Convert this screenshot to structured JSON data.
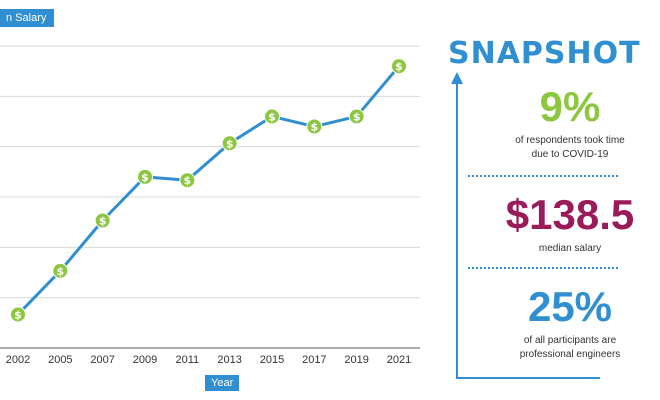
{
  "chart_data": {
    "type": "line",
    "title": "",
    "ylabel_partial": "n Salary",
    "xlabel": "Year",
    "categories": [
      "2002",
      "2005",
      "2007",
      "2009",
      "2011",
      "2013",
      "2015",
      "2017",
      "2019",
      "2021"
    ],
    "values": [
      95,
      108,
      123,
      136,
      135,
      146,
      154,
      151,
      154,
      169
    ],
    "ylim": [
      85,
      175
    ],
    "grid": true,
    "marker": "dollar-icon",
    "colors": {
      "line": "#2f8fd0",
      "marker": "#8dc63f",
      "grid": "#d9d9d9",
      "tag": "#2f8fd0"
    }
  },
  "snapshot": {
    "title": "SNAPSHOT",
    "stats": [
      {
        "value": "9%",
        "desc_line1": "of respondents took time",
        "desc_line2": "due to COVID-19",
        "color": "#8dc63f"
      },
      {
        "value": "$138.5",
        "desc_line1": "median salary",
        "desc_line2": "",
        "color": "#9b1b5a"
      },
      {
        "value": "25%",
        "desc_line1": "of all participants are",
        "desc_line2": "professional engineers",
        "color": "#2f8fd0"
      }
    ]
  }
}
